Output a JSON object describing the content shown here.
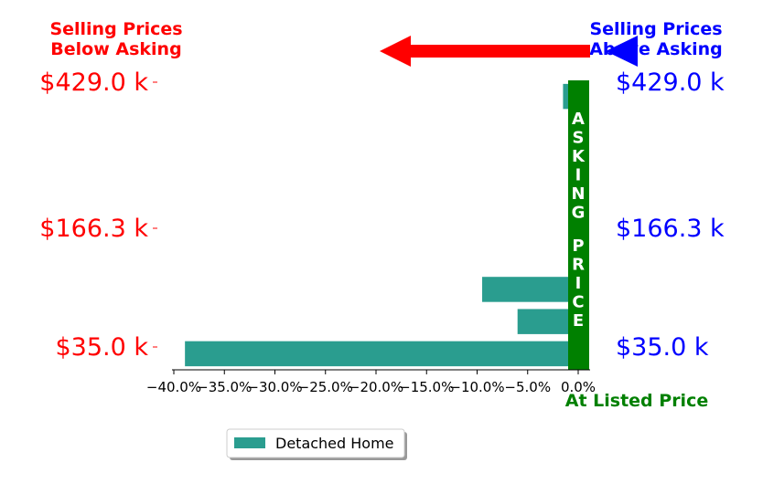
{
  "chart_data": {
    "type": "bar",
    "orientation": "horizontal",
    "header_left": [
      "Selling Prices",
      "Below Asking"
    ],
    "header_right": [
      "Selling Prices",
      "Above Asking"
    ],
    "at_listed_label": "At Listed Price",
    "asking_price_vertical_label": "ASKING PRICE",
    "y_tick_labels": [
      "$429.0 k",
      "$166.3 k",
      "$35.0 k"
    ],
    "x_ticks": [
      -40,
      -35,
      -30,
      -25,
      -20,
      -15,
      -10,
      -5,
      0
    ],
    "x_tick_labels": [
      "−40.0%",
      "−35.0%",
      "−30.0%",
      "−25.0%",
      "−20.0%",
      "−15.0%",
      "−10.0%",
      "−5.0%",
      "0.0%"
    ],
    "xlim": [
      -40.5,
      1.0
    ],
    "series": [
      {
        "name": "Detached Home",
        "color": "#2a9d8f",
        "values": [
          -1.5,
          0.0,
          -0.7,
          0.0,
          0.0,
          -0.1,
          -9.5,
          -6.0,
          -38.9
        ]
      }
    ],
    "legend_position": "bottom-center",
    "colors": {
      "below": "#ff0000",
      "above": "#0000ff",
      "asking": "#008000",
      "bar": "#2a9d8f"
    }
  }
}
